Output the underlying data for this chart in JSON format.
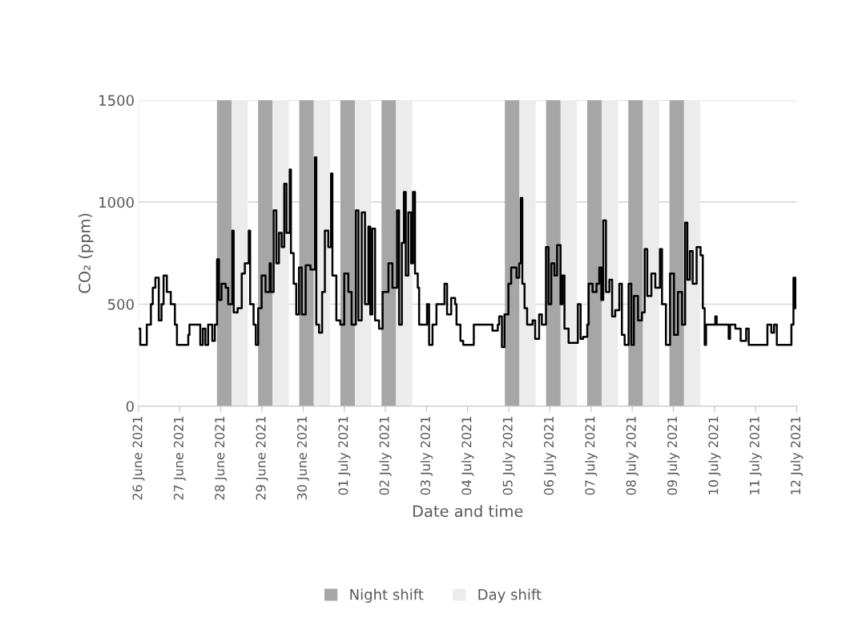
{
  "chart_data": {
    "type": "step",
    "xlabel": "Date and time",
    "ylabel": "CO₂ (ppm)",
    "xlim": [
      "2021-06-26",
      "2021-07-12"
    ],
    "ylim": [
      0,
      1500
    ],
    "yticks": [
      0,
      500,
      1000,
      1500
    ],
    "xticks": [
      {
        "value": "2021-06-26",
        "label": "26 June 2021"
      },
      {
        "value": "2021-06-27",
        "label": "27 June 2021"
      },
      {
        "value": "2021-06-28",
        "label": "28 June 2021"
      },
      {
        "value": "2021-06-29",
        "label": "29 June 2021"
      },
      {
        "value": "2021-06-30",
        "label": "30 June 2021"
      },
      {
        "value": "2021-07-01",
        "label": "01 July 2021"
      },
      {
        "value": "2021-07-02",
        "label": "02 July 2021"
      },
      {
        "value": "2021-07-03",
        "label": "03 July 2021"
      },
      {
        "value": "2021-07-04",
        "label": "04 July 2021"
      },
      {
        "value": "2021-07-05",
        "label": "05 July 2021"
      },
      {
        "value": "2021-07-06",
        "label": "06 July 2021"
      },
      {
        "value": "2021-07-07",
        "label": "07 July 2021"
      },
      {
        "value": "2021-07-08",
        "label": "08 July 2021"
      },
      {
        "value": "2021-07-09",
        "label": "09 July 2021"
      },
      {
        "value": "2021-07-10",
        "label": "10 July 2021"
      },
      {
        "value": "2021-07-11",
        "label": "11 July 2021"
      },
      {
        "value": "2021-07-12",
        "label": "12 July 2021"
      }
    ],
    "grid": "y",
    "legend": "bottom",
    "line_style": "solid",
    "marker": "none",
    "bands": [
      {
        "axis": "x",
        "from": "2021-06-27T21:45",
        "to": "2021-06-28T06:15",
        "label": "Night shift",
        "color": "#a6a6a6"
      },
      {
        "axis": "x",
        "from": "2021-06-28T06:15",
        "to": "2021-06-28T15:45",
        "label": "Day shift",
        "color": "#ececec"
      },
      {
        "axis": "x",
        "from": "2021-06-28T21:45",
        "to": "2021-06-29T06:15",
        "color": "#a6a6a6"
      },
      {
        "axis": "x",
        "from": "2021-06-29T06:15",
        "to": "2021-06-29T15:45",
        "color": "#ececec"
      },
      {
        "axis": "x",
        "from": "2021-06-29T21:45",
        "to": "2021-06-30T06:15",
        "color": "#a6a6a6"
      },
      {
        "axis": "x",
        "from": "2021-06-30T06:15",
        "to": "2021-06-30T15:45",
        "color": "#ececec"
      },
      {
        "axis": "x",
        "from": "2021-06-30T21:45",
        "to": "2021-07-01T06:15",
        "color": "#a6a6a6"
      },
      {
        "axis": "x",
        "from": "2021-07-01T06:15",
        "to": "2021-07-01T15:45",
        "color": "#ececec"
      },
      {
        "axis": "x",
        "from": "2021-07-01T21:45",
        "to": "2021-07-02T06:15",
        "color": "#a6a6a6"
      },
      {
        "axis": "x",
        "from": "2021-07-02T06:15",
        "to": "2021-07-02T15:45",
        "color": "#ececec"
      },
      {
        "axis": "x",
        "from": "2021-07-04T21:45",
        "to": "2021-07-05T06:15",
        "color": "#a6a6a6"
      },
      {
        "axis": "x",
        "from": "2021-07-05T06:15",
        "to": "2021-07-05T15:45",
        "color": "#ececec"
      },
      {
        "axis": "x",
        "from": "2021-07-05T21:45",
        "to": "2021-07-06T06:15",
        "color": "#a6a6a6"
      },
      {
        "axis": "x",
        "from": "2021-07-06T06:15",
        "to": "2021-07-06T15:45",
        "color": "#ececec"
      },
      {
        "axis": "x",
        "from": "2021-07-06T21:45",
        "to": "2021-07-07T06:15",
        "color": "#a6a6a6"
      },
      {
        "axis": "x",
        "from": "2021-07-07T06:15",
        "to": "2021-07-07T15:45",
        "color": "#ececec"
      },
      {
        "axis": "x",
        "from": "2021-07-07T21:45",
        "to": "2021-07-08T06:15",
        "color": "#a6a6a6"
      },
      {
        "axis": "x",
        "from": "2021-07-08T06:15",
        "to": "2021-07-08T15:45",
        "color": "#ececec"
      },
      {
        "axis": "x",
        "from": "2021-07-08T21:45",
        "to": "2021-07-09T06:15",
        "color": "#a6a6a6"
      },
      {
        "axis": "x",
        "from": "2021-07-09T06:15",
        "to": "2021-07-09T15:45",
        "color": "#ececec"
      }
    ],
    "series": [
      {
        "color": "#000000",
        "x": [
          "2021-06-26T00:00",
          "2021-06-26T01:00",
          "2021-06-26T04:48",
          "2021-06-26T07:12",
          "2021-06-26T08:18",
          "2021-06-26T09:48",
          "2021-06-26T11:48",
          "2021-06-26T13:24",
          "2021-06-26T14:36",
          "2021-06-26T16:30",
          "2021-06-26T18:48",
          "2021-06-26T21:12",
          "2021-06-26T22:24",
          "2021-06-27T05:00",
          "2021-06-27T05:42",
          "2021-06-27T11:12",
          "2021-06-27T12:00",
          "2021-06-27T13:30",
          "2021-06-27T15:00",
          "2021-06-27T16:36",
          "2021-06-27T19:00",
          "2021-06-27T20:30",
          "2021-06-27T21:48",
          "2021-06-27T22:54",
          "2021-06-28T00:24",
          "2021-06-28T02:48",
          "2021-06-28T04:18",
          "2021-06-28T06:42",
          "2021-06-28T07:30",
          "2021-06-28T09:48",
          "2021-06-28T12:12",
          "2021-06-28T14:00",
          "2021-06-28T16:18",
          "2021-06-28T17:06",
          "2021-06-28T19:06",
          "2021-06-28T20:24",
          "2021-06-28T21:48",
          "2021-06-28T23:48",
          "2021-06-29T02:06",
          "2021-06-29T04:30",
          "2021-06-29T05:12",
          "2021-06-29T06:48",
          "2021-06-29T08:24",
          "2021-06-29T09:54",
          "2021-06-29T11:30",
          "2021-06-29T13:00",
          "2021-06-29T14:18",
          "2021-06-29T16:12",
          "2021-06-29T16:54",
          "2021-06-29T18:30",
          "2021-06-29T20:00",
          "2021-06-29T21:36",
          "2021-06-29T23:12",
          "2021-06-30T01:30",
          "2021-06-30T04:18",
          "2021-06-30T06:54",
          "2021-06-30T07:42",
          "2021-06-30T09:18",
          "2021-06-30T11:06",
          "2021-06-30T12:42",
          "2021-06-30T14:42",
          "2021-06-30T16:18",
          "2021-06-30T17:06",
          "2021-06-30T19:24",
          "2021-06-30T21:42",
          "2021-07-01T00:00",
          "2021-07-01T02:24",
          "2021-07-01T04:18",
          "2021-07-01T06:48",
          "2021-07-01T08:18",
          "2021-07-01T10:12",
          "2021-07-01T12:06",
          "2021-07-01T14:06",
          "2021-07-01T15:12",
          "2021-07-01T16:24",
          "2021-07-01T18:00",
          "2021-07-01T20:18",
          "2021-07-01T22:24",
          "2021-07-02T01:48",
          "2021-07-02T04:06",
          "2021-07-02T06:48",
          "2021-07-02T08:00",
          "2021-07-02T09:36",
          "2021-07-02T10:48",
          "2021-07-02T11:54",
          "2021-07-02T13:24",
          "2021-07-02T15:00",
          "2021-07-02T16:06",
          "2021-07-02T17:18",
          "2021-07-02T18:54",
          "2021-07-02T19:42",
          "2021-07-03T00:18",
          "2021-07-03T01:30",
          "2021-07-03T03:30",
          "2021-07-03T05:48",
          "2021-07-03T08:06",
          "2021-07-03T10:30",
          "2021-07-03T12:00",
          "2021-07-03T14:24",
          "2021-07-03T16:42",
          "2021-07-03T17:30",
          "2021-07-03T19:48",
          "2021-07-03T21:24",
          "2021-07-04T03:36",
          "2021-07-04T13:00",
          "2021-07-04T14:30",
          "2021-07-04T17:36",
          "2021-07-04T18:24",
          "2021-07-04T20:00",
          "2021-07-04T21:30",
          "2021-07-04T23:48",
          "2021-07-05T01:24",
          "2021-07-05T04:30",
          "2021-07-05T06:06",
          "2021-07-05T07:00",
          "2021-07-05T07:54",
          "2021-07-05T09:12",
          "2021-07-05T10:42",
          "2021-07-05T13:54",
          "2021-07-05T15:24",
          "2021-07-05T17:42",
          "2021-07-05T19:18",
          "2021-07-05T21:42",
          "2021-07-05T23:12",
          "2021-07-06T00:48",
          "2021-07-06T02:36",
          "2021-07-06T04:12",
          "2021-07-06T06:12",
          "2021-07-06T07:18",
          "2021-07-06T08:30",
          "2021-07-06T10:54",
          "2021-07-06T14:48",
          "2021-07-06T16:18",
          "2021-07-06T17:54",
          "2021-07-06T19:24",
          "2021-07-06T21:48",
          "2021-07-06T22:36",
          "2021-07-07T00:54",
          "2021-07-07T03:12",
          "2021-07-07T04:48",
          "2021-07-07T06:00",
          "2021-07-07T07:06",
          "2021-07-07T08:42",
          "2021-07-07T10:42",
          "2021-07-07T12:18",
          "2021-07-07T14:06",
          "2021-07-07T16:30",
          "2021-07-07T18:00",
          "2021-07-07T19:36",
          "2021-07-07T21:54",
          "2021-07-07T23:30",
          "2021-07-08T01:00",
          "2021-07-08T03:24",
          "2021-07-08T05:42",
          "2021-07-08T07:18",
          "2021-07-08T08:48",
          "2021-07-08T11:12",
          "2021-07-08T13:30",
          "2021-07-08T16:12",
          "2021-07-08T17:24",
          "2021-07-08T19:42",
          "2021-07-08T22:06",
          "2021-07-09T00:24",
          "2021-07-09T02:42",
          "2021-07-09T05:06",
          "2021-07-09T06:54",
          "2021-07-09T08:12",
          "2021-07-09T09:42",
          "2021-07-09T11:18",
          "2021-07-09T13:36",
          "2021-07-09T15:54",
          "2021-07-09T17:12",
          "2021-07-09T18:18",
          "2021-07-09T19:06",
          "2021-07-10T00:30",
          "2021-07-10T01:18",
          "2021-07-10T07:30",
          "2021-07-10T08:18",
          "2021-07-10T09:06",
          "2021-07-10T12:12",
          "2021-07-10T15:18",
          "2021-07-10T18:30",
          "2021-07-10T20:00",
          "2021-07-11T05:18",
          "2021-07-11T06:54",
          "2021-07-11T09:12",
          "2021-07-11T10:48",
          "2021-07-11T12:24",
          "2021-07-11T19:24",
          "2021-07-11T20:54",
          "2021-07-11T22:06",
          "2021-07-11T23:12"
        ],
        "values": [
          380,
          300,
          400,
          500,
          580,
          630,
          420,
          500,
          640,
          560,
          500,
          400,
          300,
          350,
          400,
          400,
          300,
          380,
          300,
          400,
          320,
          400,
          720,
          520,
          600,
          580,
          500,
          860,
          460,
          480,
          650,
          700,
          860,
          500,
          400,
          300,
          480,
          640,
          560,
          700,
          560,
          960,
          700,
          850,
          780,
          1090,
          850,
          1160,
          750,
          600,
          450,
          680,
          450,
          690,
          670,
          1220,
          400,
          360,
          560,
          860,
          780,
          1140,
          640,
          420,
          400,
          650,
          560,
          400,
          960,
          420,
          950,
          500,
          880,
          450,
          870,
          420,
          380,
          560,
          700,
          580,
          960,
          400,
          800,
          1050,
          640,
          950,
          700,
          1050,
          650,
          580,
          400,
          500,
          300,
          400,
          500,
          500,
          600,
          450,
          530,
          500,
          400,
          320,
          300,
          400,
          400,
          370,
          400,
          440,
          290,
          450,
          600,
          680,
          630,
          700,
          1020,
          600,
          480,
          400,
          420,
          330,
          450,
          400,
          780,
          500,
          700,
          640,
          790,
          500,
          640,
          380,
          310,
          310,
          500,
          330,
          340,
          400,
          600,
          560,
          600,
          680,
          520,
          910,
          560,
          620,
          440,
          470,
          600,
          350,
          300,
          600,
          300,
          540,
          420,
          460,
          770,
          540,
          650,
          580,
          770,
          500,
          300,
          650,
          350,
          560,
          400,
          900,
          620,
          760,
          600,
          780,
          740,
          480,
          300,
          400,
          440,
          400,
          400,
          330,
          400,
          380,
          320,
          380,
          300,
          300,
          400,
          360,
          400,
          300,
          300,
          400,
          630,
          480
        ]
      }
    ]
  }
}
